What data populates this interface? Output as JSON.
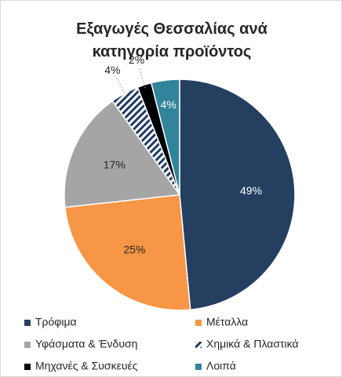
{
  "chart_data": {
    "type": "pie",
    "title": "Εξαγωγές Θεσσαλίας ανά κατηγορία προϊόντος",
    "categories": [
      "Τρόφιμα",
      "Μέταλλα",
      "Υφάσματα & Ένδυση",
      "Χημικά & Πλαστικά",
      "Μηχανές & Συσκευές",
      "Λοιπά"
    ],
    "values": [
      49,
      25,
      17,
      4,
      2,
      4
    ],
    "value_labels": [
      "49%",
      "25%",
      "17%",
      "4%",
      "2%",
      "4%"
    ],
    "colors": [
      "#243f60",
      "#f79646",
      "#a5a5a5",
      "hatch",
      "#000000",
      "#31849b"
    ],
    "legend": "bottom"
  }
}
